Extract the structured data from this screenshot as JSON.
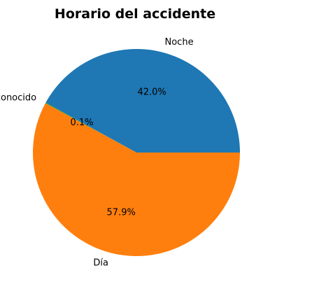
{
  "chart_data": {
    "type": "pie",
    "title": "Horario del accidente",
    "categories": [
      "Noche",
      "Desconocido",
      "Día"
    ],
    "values": [
      42.0,
      0.1,
      57.9
    ],
    "percent_labels": [
      "42.0%",
      "0.1%",
      "57.9%"
    ],
    "colors": [
      "#1f77b4",
      "#2ca02c",
      "#ff7f0e"
    ],
    "start_angle_deg": 0,
    "direction": "counterclockwise",
    "legend": "none"
  }
}
